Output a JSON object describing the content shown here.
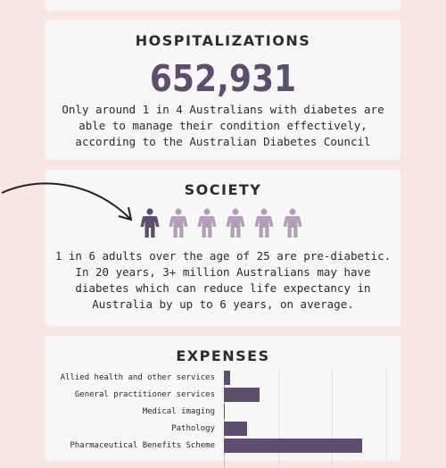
{
  "hospitalizations": {
    "title": "HOSPITALIZATIONS",
    "number": "652,931",
    "description": "Only around 1 in 4 Australians with diabetes are able to manage their condition effectively, according to the Australian Diabetes Council"
  },
  "society": {
    "title": "SOCIETY",
    "people_total": 6,
    "people_highlighted": 1,
    "highlight_color": "#5e4d6e",
    "other_color": "#b39db8",
    "description": "1 in 6 adults over the age of 25 are pre-diabetic. In 20 years, 3+ million Australians may have diabetes which can reduce life expectancy in Australia by up to 6 years, on average."
  },
  "expenses": {
    "title": "EXPENSES"
  },
  "chart_data": {
    "type": "bar",
    "orientation": "horizontal",
    "categories": [
      "Allied health and other services",
      "General practitioner services",
      "Medical imaging",
      "Pathology",
      "Pharmaceutical Benefits Scheme"
    ],
    "values": [
      7,
      40,
      1,
      26,
      153
    ],
    "xlim": [
      0,
      180
    ],
    "grid": true,
    "bar_color": "#5e4d6e"
  }
}
